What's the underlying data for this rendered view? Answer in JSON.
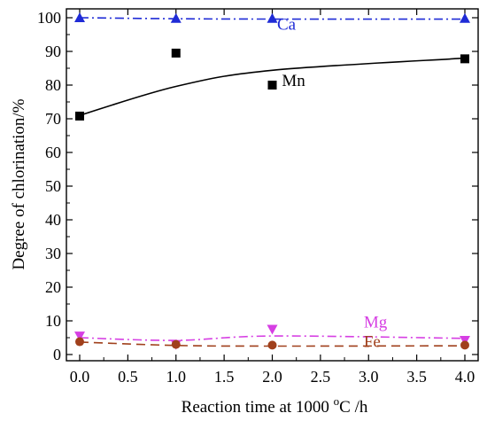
{
  "chart_data": {
    "type": "scatter",
    "xlabel_parts": {
      "before": "Reaction time at 1000 ",
      "sup": "o",
      "after": "C /h"
    },
    "ylabel": "Degree of chlorination/%",
    "xlim": [
      0.0,
      4.0
    ],
    "ylim": [
      0,
      100
    ],
    "x_ticks": [
      0.0,
      0.5,
      1.0,
      1.5,
      2.0,
      2.5,
      3.0,
      3.5,
      4.0
    ],
    "x_tick_labels": [
      "0.0",
      "0.5",
      "1.0",
      "1.5",
      "2.0",
      "2.5",
      "3.0",
      "3.5",
      "4.0"
    ],
    "y_ticks": [
      0,
      10,
      20,
      30,
      40,
      50,
      60,
      70,
      80,
      90,
      100
    ],
    "y_tick_labels": [
      "0",
      "10",
      "20",
      "30",
      "40",
      "50",
      "60",
      "70",
      "80",
      "90",
      "100"
    ],
    "grid": false,
    "series": [
      {
        "name": "Ca",
        "marker": "triangle-up",
        "color": "#1f2bd6",
        "line_style": "dash-dot",
        "x": [
          0.0,
          1.0,
          2.0,
          4.0
        ],
        "values": [
          100.0,
          99.8,
          99.8,
          99.8
        ],
        "fit": [
          100.0,
          99.7,
          99.6,
          99.6
        ]
      },
      {
        "name": "Mn",
        "marker": "square",
        "color": "#000000",
        "line_style": "solid",
        "x": [
          0.0,
          1.0,
          2.0,
          4.0
        ],
        "values": [
          70.8,
          89.5,
          80.0,
          87.8
        ],
        "fit": [
          71.0,
          79.6,
          84.4,
          88.0
        ]
      },
      {
        "name": "Mg",
        "marker": "triangle-down",
        "color": "#d63fe3",
        "line_style": "dash-dot",
        "x": [
          0.0,
          1.0,
          2.0,
          4.0
        ],
        "values": [
          5.5,
          3.0,
          7.5,
          4.2
        ],
        "fit": [
          5.0,
          4.2,
          5.5,
          4.8
        ]
      },
      {
        "name": "Fe",
        "marker": "circle",
        "color": "#a0401c",
        "line_style": "dashed",
        "x": [
          0.0,
          1.0,
          2.0,
          4.0
        ],
        "values": [
          3.8,
          3.0,
          2.8,
          2.8
        ],
        "fit": [
          3.7,
          2.7,
          2.5,
          2.6
        ]
      }
    ]
  }
}
